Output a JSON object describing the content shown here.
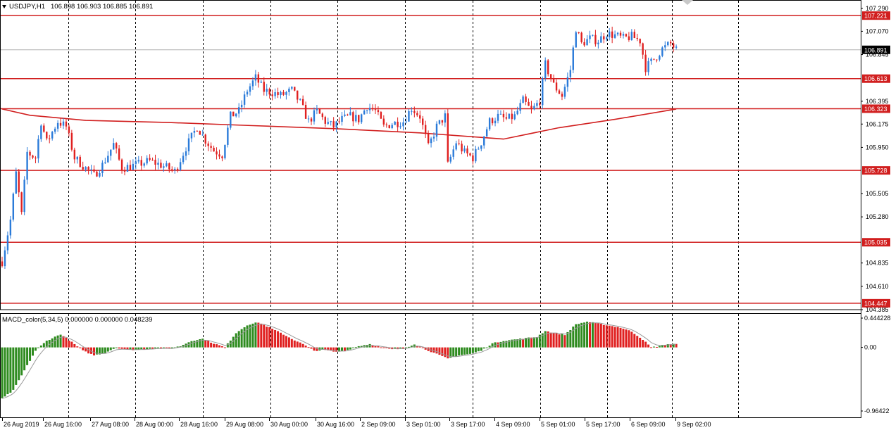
{
  "header": {
    "symbol_label": "USDJPY,H1",
    "ohlc_label": "106.898 106.903 106.885 106.891"
  },
  "indicator": {
    "label": "MACD_color(5,34,5) 0.000000 0.000000 0.048239",
    "scale_labels": [
      "0.444228",
      "0.00",
      "-0.96422"
    ]
  },
  "colors": {
    "bull": "#2b7bd9",
    "bear": "#e02020",
    "level": "#d11f1f",
    "ma": "#d11f1f",
    "grid": "#000000",
    "hist_up": "#2e8b1f",
    "hist_down": "#e02020",
    "signal": "#9a9a9a"
  },
  "chart_data": [
    {
      "type": "candlestick",
      "title": "USDJPY,H1",
      "ylim": [
        104.385,
        107.29
      ],
      "y_tick_labels": [
        "107.290",
        "107.070",
        "106.845",
        "106.395",
        "106.175",
        "105.950",
        "105.505",
        "105.280",
        "104.835",
        "104.610",
        "104.385"
      ],
      "x_tick_labels": [
        "26 Aug 2019",
        "26 Aug 16:00",
        "27 Aug 08:00",
        "28 Aug 00:00",
        "28 Aug 16:00",
        "29 Aug 08:00",
        "30 Aug 00:00",
        "30 Aug 16:00",
        "2 Sep 09:00",
        "3 Sep 01:00",
        "3 Sep 17:00",
        "4 Sep 09:00",
        "5 Sep 01:00",
        "5 Sep 17:00",
        "6 Sep 09:00",
        "9 Sep 02:00"
      ],
      "horizontal_levels": [
        107.221,
        106.613,
        106.323,
        105.728,
        105.035,
        104.447
      ],
      "current_price": 106.891,
      "moving_average": [
        {
          "x": 0,
          "y": 106.32
        },
        {
          "x": 10,
          "y": 106.26
        },
        {
          "x": 30,
          "y": 106.21
        },
        {
          "x": 60,
          "y": 106.19
        },
        {
          "x": 90,
          "y": 106.16
        },
        {
          "x": 120,
          "y": 106.13
        },
        {
          "x": 150,
          "y": 106.09
        },
        {
          "x": 180,
          "y": 106.03
        },
        {
          "x": 200,
          "y": 106.14
        },
        {
          "x": 220,
          "y": 106.22
        },
        {
          "x": 242,
          "y": 106.32
        }
      ],
      "anchors": [
        {
          "x": 0,
          "y": 104.85
        },
        {
          "x": 3,
          "y": 105.25
        },
        {
          "x": 5,
          "y": 105.7
        },
        {
          "x": 7,
          "y": 105.3
        },
        {
          "x": 9,
          "y": 105.9
        },
        {
          "x": 12,
          "y": 105.85
        },
        {
          "x": 14,
          "y": 106.2
        },
        {
          "x": 16,
          "y": 106.0
        },
        {
          "x": 20,
          "y": 106.2
        },
        {
          "x": 23,
          "y": 106.15
        },
        {
          "x": 26,
          "y": 105.85
        },
        {
          "x": 30,
          "y": 105.75
        },
        {
          "x": 33,
          "y": 105.68
        },
        {
          "x": 36,
          "y": 105.78
        },
        {
          "x": 40,
          "y": 105.98
        },
        {
          "x": 43,
          "y": 105.75
        },
        {
          "x": 48,
          "y": 105.78
        },
        {
          "x": 53,
          "y": 105.82
        },
        {
          "x": 57,
          "y": 105.78
        },
        {
          "x": 62,
          "y": 105.72
        },
        {
          "x": 66,
          "y": 105.95
        },
        {
          "x": 70,
          "y": 106.15
        },
        {
          "x": 73,
          "y": 106.02
        },
        {
          "x": 76,
          "y": 105.92
        },
        {
          "x": 79,
          "y": 105.88
        },
        {
          "x": 82,
          "y": 106.25
        },
        {
          "x": 85,
          "y": 106.3
        },
        {
          "x": 88,
          "y": 106.5
        },
        {
          "x": 91,
          "y": 106.62
        },
        {
          "x": 94,
          "y": 106.5
        },
        {
          "x": 97,
          "y": 106.48
        },
        {
          "x": 100,
          "y": 106.45
        },
        {
          "x": 104,
          "y": 106.5
        },
        {
          "x": 107,
          "y": 106.38
        },
        {
          "x": 110,
          "y": 106.2
        },
        {
          "x": 113,
          "y": 106.3
        },
        {
          "x": 116,
          "y": 106.2
        },
        {
          "x": 119,
          "y": 106.15
        },
        {
          "x": 122,
          "y": 106.22
        },
        {
          "x": 125,
          "y": 106.25
        },
        {
          "x": 128,
          "y": 106.22
        },
        {
          "x": 131,
          "y": 106.35
        },
        {
          "x": 134,
          "y": 106.3
        },
        {
          "x": 137,
          "y": 106.15
        },
        {
          "x": 140,
          "y": 106.18
        },
        {
          "x": 144,
          "y": 106.2
        },
        {
          "x": 147,
          "y": 106.33
        },
        {
          "x": 150,
          "y": 106.25
        },
        {
          "x": 153,
          "y": 105.95
        },
        {
          "x": 156,
          "y": 106.15
        },
        {
          "x": 159,
          "y": 106.25
        },
        {
          "x": 160,
          "y": 105.78
        },
        {
          "x": 163,
          "y": 106.0
        },
        {
          "x": 166,
          "y": 105.9
        },
        {
          "x": 169,
          "y": 105.85
        },
        {
          "x": 172,
          "y": 106.0
        },
        {
          "x": 175,
          "y": 106.2
        },
        {
          "x": 178,
          "y": 106.25
        },
        {
          "x": 181,
          "y": 106.22
        },
        {
          "x": 184,
          "y": 106.25
        },
        {
          "x": 187,
          "y": 106.4
        },
        {
          "x": 190,
          "y": 106.3
        },
        {
          "x": 193,
          "y": 106.4
        },
        {
          "x": 195,
          "y": 106.75
        },
        {
          "x": 198,
          "y": 106.55
        },
        {
          "x": 201,
          "y": 106.45
        },
        {
          "x": 204,
          "y": 106.7
        },
        {
          "x": 206,
          "y": 107.1
        },
        {
          "x": 208,
          "y": 106.95
        },
        {
          "x": 211,
          "y": 107.0
        },
        {
          "x": 214,
          "y": 106.98
        },
        {
          "x": 217,
          "y": 107.05
        },
        {
          "x": 220,
          "y": 107.03
        },
        {
          "x": 223,
          "y": 107.0
        },
        {
          "x": 226,
          "y": 107.02
        },
        {
          "x": 229,
          "y": 106.98
        },
        {
          "x": 231,
          "y": 106.72
        },
        {
          "x": 234,
          "y": 106.8
        },
        {
          "x": 237,
          "y": 106.9
        },
        {
          "x": 240,
          "y": 106.95
        },
        {
          "x": 242,
          "y": 106.89
        }
      ],
      "macd_anchors": [
        {
          "x": 0,
          "y": -0.78
        },
        {
          "x": 4,
          "y": -0.65
        },
        {
          "x": 8,
          "y": -0.35
        },
        {
          "x": 12,
          "y": -0.05
        },
        {
          "x": 16,
          "y": 0.1
        },
        {
          "x": 21,
          "y": 0.2
        },
        {
          "x": 25,
          "y": 0.08
        },
        {
          "x": 29,
          "y": -0.05
        },
        {
          "x": 33,
          "y": -0.12
        },
        {
          "x": 37,
          "y": -0.08
        },
        {
          "x": 41,
          "y": 0.0
        },
        {
          "x": 45,
          "y": -0.04
        },
        {
          "x": 50,
          "y": -0.03
        },
        {
          "x": 55,
          "y": -0.01
        },
        {
          "x": 60,
          "y": -0.02
        },
        {
          "x": 64,
          "y": 0.02
        },
        {
          "x": 68,
          "y": 0.1
        },
        {
          "x": 72,
          "y": 0.13
        },
        {
          "x": 76,
          "y": 0.06
        },
        {
          "x": 80,
          "y": 0.0
        },
        {
          "x": 84,
          "y": 0.22
        },
        {
          "x": 88,
          "y": 0.34
        },
        {
          "x": 92,
          "y": 0.38
        },
        {
          "x": 96,
          "y": 0.3
        },
        {
          "x": 100,
          "y": 0.22
        },
        {
          "x": 104,
          "y": 0.13
        },
        {
          "x": 108,
          "y": 0.05
        },
        {
          "x": 112,
          "y": -0.05
        },
        {
          "x": 116,
          "y": -0.04
        },
        {
          "x": 120,
          "y": -0.07
        },
        {
          "x": 124,
          "y": -0.04
        },
        {
          "x": 128,
          "y": 0.02
        },
        {
          "x": 132,
          "y": 0.05
        },
        {
          "x": 136,
          "y": 0.0
        },
        {
          "x": 140,
          "y": -0.03
        },
        {
          "x": 144,
          "y": -0.02
        },
        {
          "x": 148,
          "y": 0.05
        },
        {
          "x": 152,
          "y": -0.03
        },
        {
          "x": 156,
          "y": -0.1
        },
        {
          "x": 160,
          "y": -0.17
        },
        {
          "x": 164,
          "y": -0.12
        },
        {
          "x": 168,
          "y": -0.1
        },
        {
          "x": 172,
          "y": -0.05
        },
        {
          "x": 176,
          "y": 0.06
        },
        {
          "x": 180,
          "y": 0.1
        },
        {
          "x": 184,
          "y": 0.12
        },
        {
          "x": 188,
          "y": 0.14
        },
        {
          "x": 192,
          "y": 0.16
        },
        {
          "x": 195,
          "y": 0.25
        },
        {
          "x": 198,
          "y": 0.22
        },
        {
          "x": 202,
          "y": 0.19
        },
        {
          "x": 206,
          "y": 0.35
        },
        {
          "x": 210,
          "y": 0.39
        },
        {
          "x": 214,
          "y": 0.36
        },
        {
          "x": 218,
          "y": 0.33
        },
        {
          "x": 222,
          "y": 0.3
        },
        {
          "x": 226,
          "y": 0.24
        },
        {
          "x": 230,
          "y": 0.12
        },
        {
          "x": 233,
          "y": 0.0
        },
        {
          "x": 236,
          "y": 0.02
        },
        {
          "x": 239,
          "y": 0.05
        },
        {
          "x": 242,
          "y": 0.05
        }
      ],
      "macd_ylim": [
        -0.96422,
        0.444228
      ]
    }
  ]
}
